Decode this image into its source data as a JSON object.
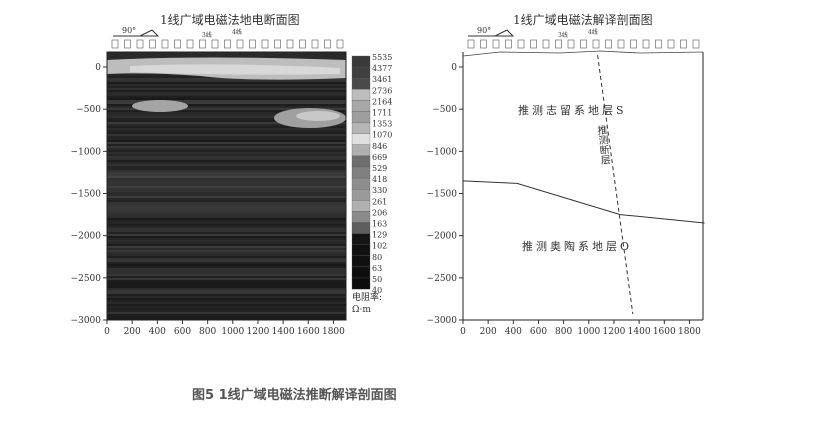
{
  "caption": "图5 1线广域电磁法推断解译剖面图",
  "chart_data": [
    {
      "type": "heatmap",
      "title": "1线广域电磁法地电断面图",
      "orientation_marker": "90°",
      "line_markers": [
        "3线",
        "4线"
      ],
      "x_ticks": [
        0,
        200,
        400,
        600,
        800,
        1000,
        1200,
        1400,
        1600,
        1800
      ],
      "y_ticks": [
        0,
        -500,
        -1000,
        -1500,
        -2000,
        -2500,
        -3000
      ],
      "xlim": [
        0,
        1900
      ],
      "ylim": [
        -3000,
        0
      ],
      "colorbar": {
        "label": "电阻率:",
        "unit": "Ω·m",
        "values": [
          5535,
          4377,
          3461,
          2736,
          2164,
          1711,
          1353,
          1070,
          846,
          669,
          529,
          418,
          330,
          261,
          206,
          163,
          129,
          102,
          80,
          63,
          50,
          40
        ],
        "colors": [
          "#3a3a3a",
          "#404040",
          "#4a4a4a",
          "#bdbdbd",
          "#a8a8a8",
          "#9e9e9e",
          "#b5b5b5",
          "#e0e0e0",
          "#b0b0b0",
          "#6e6e6e",
          "#808080",
          "#8e8e8e",
          "#9a9a9a",
          "#b0b0b0",
          "#8a8a8a",
          "#5e5e5e",
          "#141414",
          "#111",
          "#101010",
          "#0e0e0e",
          "#0d0d0d",
          "#0c0c0c"
        ]
      }
    },
    {
      "type": "line",
      "title": "1线广域电磁法解译剖面图",
      "orientation_marker": "90°",
      "line_markers": [
        "3线",
        "4线"
      ],
      "x_ticks": [
        0,
        200,
        400,
        600,
        800,
        1000,
        1200,
        1400,
        1600,
        1800
      ],
      "y_ticks": [
        0,
        -500,
        -1000,
        -1500,
        -2000,
        -2500,
        -3000
      ],
      "xlim": [
        0,
        1900
      ],
      "ylim": [
        -3000,
        0
      ],
      "series": [
        {
          "name": "boundary",
          "x": [
            0,
            430,
            1250,
            1920
          ],
          "y": [
            -1350,
            -1380,
            -1750,
            -1850
          ]
        },
        {
          "name": "fault",
          "style": "dashed",
          "x": [
            1070,
            1350
          ],
          "y": [
            140,
            -2930
          ]
        }
      ],
      "annotations": [
        "推测志留系地层S",
        "推测断层",
        "推测奥陶系地层O"
      ]
    }
  ]
}
